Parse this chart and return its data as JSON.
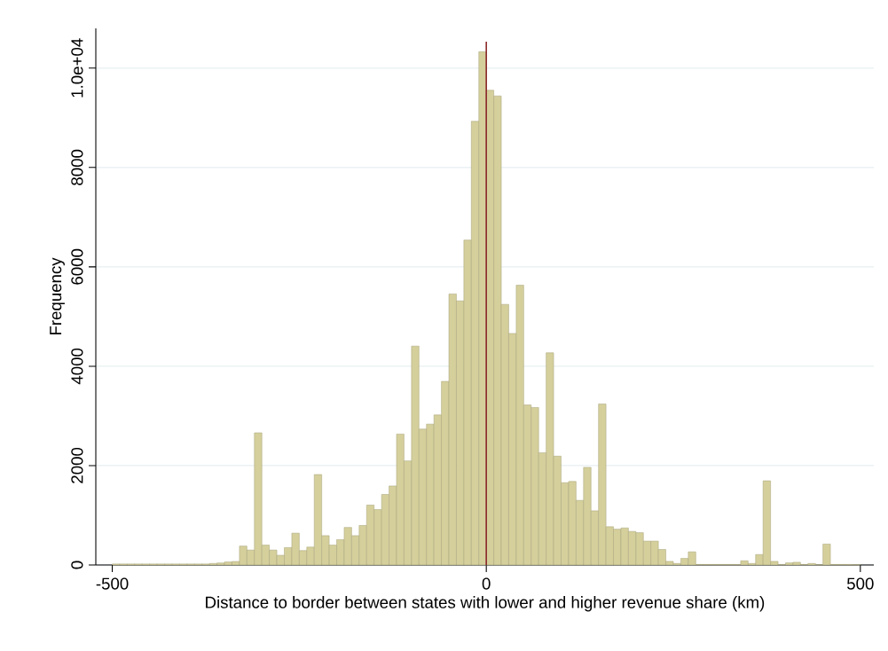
{
  "chart_data": {
    "type": "histogram",
    "xlabel": "Distance to border between states with lower and higher revenue share (km)",
    "ylabel": "Frequency",
    "bins": [
      -500,
      -490,
      -480,
      -470,
      -460,
      -450,
      -440,
      -430,
      -420,
      -410,
      -400,
      -390,
      -380,
      -370,
      -360,
      -350,
      -340,
      -330,
      -320,
      -310,
      -300,
      -290,
      -280,
      -270,
      -260,
      -250,
      -240,
      -230,
      -220,
      -210,
      -200,
      -190,
      -180,
      -170,
      -160,
      -150,
      -140,
      -130,
      -120,
      -110,
      -100,
      -90,
      -80,
      -70,
      -60,
      -50,
      -40,
      -30,
      -20,
      -10,
      0,
      10,
      20,
      30,
      40,
      50,
      60,
      70,
      80,
      90,
      100,
      110,
      120,
      130,
      140,
      150,
      160,
      170,
      180,
      190,
      200,
      210,
      220,
      230,
      240,
      250,
      260,
      270,
      280,
      290,
      300,
      310,
      320,
      330,
      340,
      350,
      360,
      370,
      380,
      390,
      400,
      410,
      420,
      430,
      440,
      450,
      460,
      470,
      480,
      490,
      500
    ],
    "values": [
      20,
      20,
      20,
      20,
      20,
      20,
      20,
      20,
      20,
      20,
      20,
      20,
      20,
      30,
      40,
      60,
      70,
      380,
      300,
      2660,
      400,
      300,
      195,
      350,
      640,
      290,
      360,
      1820,
      590,
      400,
      510,
      755,
      590,
      795,
      1205,
      1115,
      1420,
      1590,
      2635,
      2095,
      4405,
      2735,
      2835,
      3020,
      3695,
      5455,
      5315,
      6540,
      8930,
      10330,
      9555,
      9440,
      5245,
      4660,
      5630,
      3220,
      3170,
      2260,
      4270,
      2190,
      1655,
      1680,
      1300,
      1965,
      1090,
      3240,
      770,
      720,
      745,
      675,
      650,
      480,
      480,
      312,
      72,
      30,
      132,
      264,
      10,
      10,
      10,
      10,
      10,
      10,
      84,
      30,
      210,
      1694,
      72,
      10,
      42,
      54,
      10,
      30,
      5,
      420,
      10,
      10,
      10,
      5
    ],
    "color": "#d5cf9c",
    "xlim": [
      -522,
      518
    ],
    "ylim": [
      0,
      10800
    ],
    "xticks": [
      -500,
      0,
      500
    ],
    "yticks": [
      0,
      2000,
      4000,
      6000,
      8000,
      {
        "value": 10000,
        "label": "1.0e+04"
      }
    ],
    "grid": "y",
    "ref_lines": [
      {
        "axis": "x",
        "value": 0,
        "color": "#8c2b2b"
      }
    ]
  }
}
